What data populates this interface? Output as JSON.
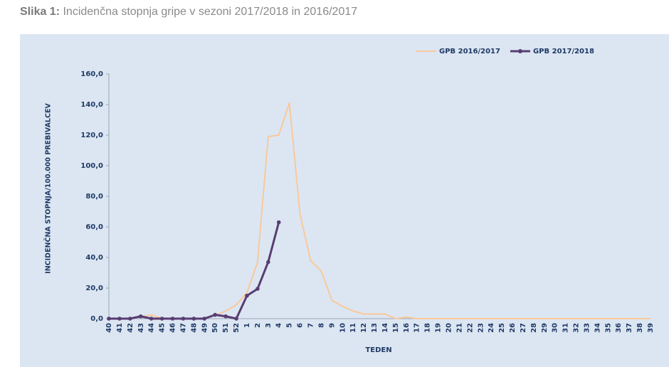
{
  "chart_data": {
    "type": "line",
    "figure_label": "Slika 1:",
    "title": "Incidenčna stopnja gripe v sezoni 2017/2018 in 2016/2017",
    "xlabel": "TEDEN",
    "ylabel": "INCIDENČNA STOPNJA/100.000 PREBIVALCEV",
    "categories": [
      "40",
      "41",
      "42",
      "43",
      "44",
      "45",
      "46",
      "47",
      "48",
      "49",
      "50",
      "51",
      "52",
      "1",
      "2",
      "3",
      "4",
      "5",
      "6",
      "7",
      "8",
      "9",
      "10",
      "11",
      "12",
      "13",
      "14",
      "15",
      "16",
      "17",
      "18",
      "19",
      "20",
      "21",
      "22",
      "23",
      "24",
      "25",
      "26",
      "27",
      "28",
      "29",
      "30",
      "31",
      "32",
      "33",
      "34",
      "35",
      "36",
      "37",
      "38",
      "39"
    ],
    "series": [
      {
        "name": "GPB 2016/2017",
        "color": "#f9c89b",
        "markers": false,
        "values": [
          0,
          0,
          0,
          1,
          2.5,
          0,
          0,
          0,
          0,
          0,
          2,
          5,
          9,
          17,
          37,
          119,
          120,
          141,
          68,
          38,
          31,
          12,
          8,
          5,
          3,
          3,
          3,
          0,
          1,
          0,
          0,
          0,
          0,
          0,
          0,
          0,
          0,
          0,
          0,
          0,
          0,
          0,
          0,
          0,
          0,
          0,
          0,
          0,
          0,
          0,
          0,
          0
        ]
      },
      {
        "name": "GPB 2017/2018",
        "color": "#573d72",
        "markers": true,
        "values": [
          0,
          0,
          0,
          1.5,
          0,
          0,
          0,
          0,
          0,
          0,
          2.5,
          1.5,
          0,
          15,
          19.5,
          37,
          63,
          null,
          null,
          null,
          null,
          null,
          null,
          null,
          null,
          null,
          null,
          null,
          null,
          null,
          null,
          null,
          null,
          null,
          null,
          null,
          null,
          null,
          null,
          null,
          null,
          null,
          null,
          null,
          null,
          null,
          null,
          null,
          null,
          null,
          null,
          null
        ]
      }
    ],
    "ylim": [
      0,
      160
    ],
    "yticks": [
      {
        "value": 0,
        "label": "0,0"
      },
      {
        "value": 20,
        "label": "20,0"
      },
      {
        "value": 40,
        "label": "40,0"
      },
      {
        "value": 60,
        "label": "60,0"
      },
      {
        "value": 80,
        "label": "80,0"
      },
      {
        "value": 100,
        "label": "100,0"
      },
      {
        "value": 120,
        "label": "120,0"
      },
      {
        "value": 140,
        "label": "140,0"
      },
      {
        "value": 160,
        "label": "160,0"
      }
    ],
    "legend": "top-right"
  }
}
